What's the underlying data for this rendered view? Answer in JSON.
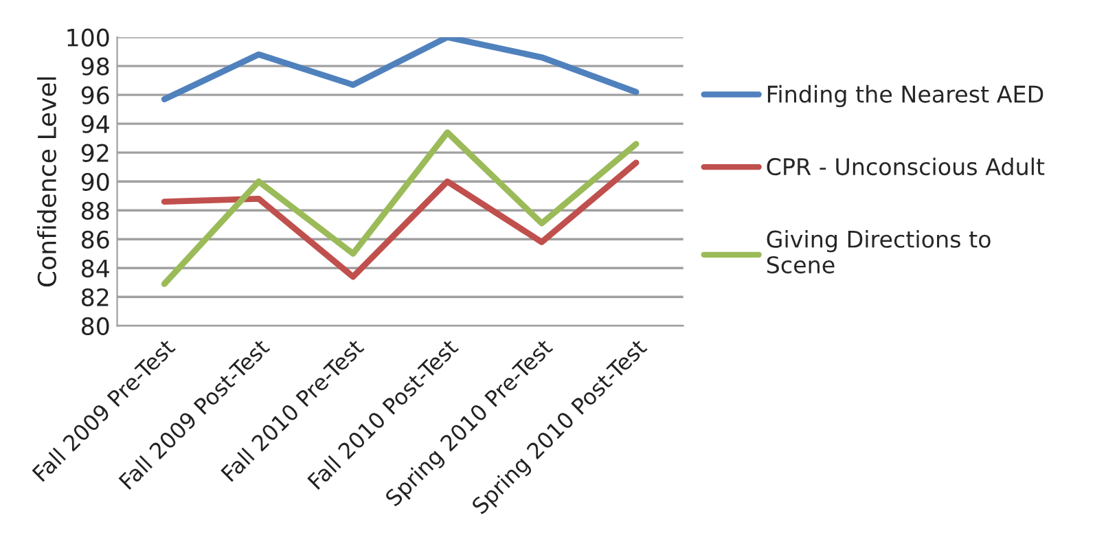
{
  "chart_data": {
    "type": "line",
    "ylabel": "Confidence Level",
    "categories": [
      "Fall 2009 Pre-Test",
      "Fall 2009 Post-Test",
      "Fall 2010 Pre-Test",
      "Fall 2010 Post-Test",
      "Spring 2010 Pre-Test",
      "Spring 2010 Post-Test"
    ],
    "series": [
      {
        "name": "Finding the Nearest AED",
        "color": "#4f81bd",
        "values": [
          95.7,
          98.8,
          96.7,
          100,
          98.6,
          96.2
        ]
      },
      {
        "name": "CPR - Unconscious Adult",
        "color": "#c0504d",
        "values": [
          88.6,
          88.8,
          83.4,
          90.0,
          85.8,
          91.3
        ]
      },
      {
        "name": "Giving Directions to Scene",
        "color": "#9bbb59",
        "values": [
          82.9,
          90.0,
          85.0,
          93.4,
          87.1,
          92.6
        ]
      }
    ],
    "ylim": [
      80,
      100
    ],
    "yticks": [
      80,
      82,
      84,
      86,
      88,
      90,
      92,
      94,
      96,
      98,
      100
    ],
    "grid": "y",
    "legend": "right",
    "marker": "none",
    "line_style": "solid"
  }
}
